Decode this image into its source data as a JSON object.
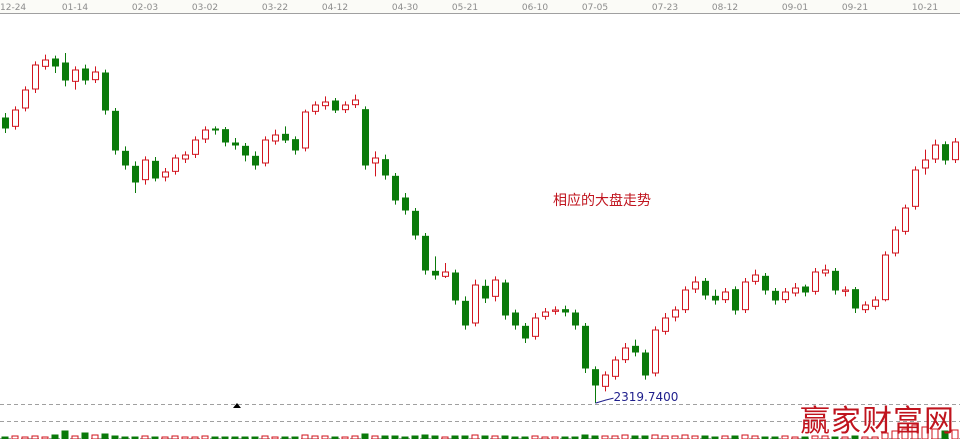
{
  "chart_data": {
    "type": "candlestick",
    "x_tick_labels": [
      {
        "label": "12-24",
        "index": 0
      },
      {
        "label": "01-14",
        "index": 7
      },
      {
        "label": "02-03",
        "index": 14
      },
      {
        "label": "03-02",
        "index": 20
      },
      {
        "label": "03-22",
        "index": 27
      },
      {
        "label": "04-12",
        "index": 33
      },
      {
        "label": "04-30",
        "index": 40
      },
      {
        "label": "05-21",
        "index": 46
      },
      {
        "label": "06-10",
        "index": 53
      },
      {
        "label": "07-05",
        "index": 59
      },
      {
        "label": "07-23",
        "index": 66
      },
      {
        "label": "08-12",
        "index": 72
      },
      {
        "label": "09-01",
        "index": 79
      },
      {
        "label": "09-21",
        "index": 85
      },
      {
        "label": "10-21",
        "index": 92
      }
    ],
    "ylim": [
      2212,
      3469
    ],
    "colors": {
      "up": "#d2141e",
      "down": "#0a7a0a",
      "grid": "#a0a0a0",
      "axis_text": "#8c8c8c",
      "low_label": "#1e1e8c"
    },
    "low_marker": {
      "index": 59,
      "value": 2319.74,
      "label": "2319.7400"
    },
    "annotation": "相应的大盘走势",
    "watermark": "赢家财富网",
    "ohlc": [
      [
        3175,
        3190,
        3130,
        3145
      ],
      [
        3150,
        3210,
        3140,
        3199
      ],
      [
        3205,
        3270,
        3195,
        3259
      ],
      [
        3262,
        3345,
        3250,
        3334
      ],
      [
        3330,
        3365,
        3320,
        3349
      ],
      [
        3352,
        3362,
        3310,
        3331
      ],
      [
        3340,
        3370,
        3270,
        3289
      ],
      [
        3285,
        3330,
        3260,
        3319
      ],
      [
        3322,
        3335,
        3275,
        3289
      ],
      [
        3290,
        3330,
        3280,
        3313
      ],
      [
        3310,
        3320,
        3185,
        3199
      ],
      [
        3195,
        3205,
        3065,
        3079
      ],
      [
        3075,
        3090,
        3020,
        3034
      ],
      [
        3030,
        3045,
        2950,
        2983
      ],
      [
        2990,
        3060,
        2975,
        3049
      ],
      [
        3045,
        3058,
        2985,
        2995
      ],
      [
        2998,
        3025,
        2985,
        3013
      ],
      [
        3015,
        3065,
        3005,
        3055
      ],
      [
        3052,
        3075,
        3040,
        3064
      ],
      [
        3066,
        3120,
        3055,
        3109
      ],
      [
        3112,
        3150,
        3100,
        3139
      ],
      [
        3142,
        3150,
        3125,
        3139
      ],
      [
        3140,
        3148,
        3090,
        3103
      ],
      [
        3100,
        3115,
        3080,
        3094
      ],
      [
        3090,
        3100,
        3045,
        3064
      ],
      [
        3060,
        3075,
        3020,
        3034
      ],
      [
        3040,
        3120,
        3030,
        3109
      ],
      [
        3106,
        3140,
        3095,
        3124
      ],
      [
        3126,
        3150,
        3100,
        3109
      ],
      [
        3110,
        3120,
        3065,
        3079
      ],
      [
        3085,
        3200,
        3075,
        3193
      ],
      [
        3195,
        3225,
        3185,
        3214
      ],
      [
        3212,
        3240,
        3200,
        3223
      ],
      [
        3226,
        3235,
        3190,
        3199
      ],
      [
        3200,
        3225,
        3190,
        3214
      ],
      [
        3215,
        3245,
        3205,
        3229
      ],
      [
        3200,
        3210,
        3020,
        3034
      ],
      [
        3040,
        3075,
        3000,
        3055
      ],
      [
        3050,
        3065,
        2990,
        3004
      ],
      [
        3000,
        3010,
        2915,
        2929
      ],
      [
        2935,
        2950,
        2885,
        2899
      ],
      [
        2895,
        2905,
        2810,
        2824
      ],
      [
        2820,
        2830,
        2705,
        2719
      ],
      [
        2715,
        2760,
        2690,
        2704
      ],
      [
        2700,
        2740,
        2695,
        2713
      ],
      [
        2710,
        2720,
        2615,
        2629
      ],
      [
        2625,
        2640,
        2540,
        2554
      ],
      [
        2560,
        2690,
        2550,
        2674
      ],
      [
        2670,
        2690,
        2620,
        2635
      ],
      [
        2640,
        2700,
        2625,
        2689
      ],
      [
        2680,
        2690,
        2570,
        2584
      ],
      [
        2590,
        2600,
        2540,
        2554
      ],
      [
        2550,
        2560,
        2500,
        2515
      ],
      [
        2520,
        2590,
        2510,
        2575
      ],
      [
        2580,
        2605,
        2570,
        2593
      ],
      [
        2595,
        2610,
        2585,
        2599
      ],
      [
        2600,
        2612,
        2580,
        2593
      ],
      [
        2590,
        2600,
        2540,
        2554
      ],
      [
        2550,
        2560,
        2410,
        2425
      ],
      [
        2420,
        2430,
        2319.74,
        2374
      ],
      [
        2370,
        2415,
        2355,
        2404
      ],
      [
        2400,
        2460,
        2390,
        2449
      ],
      [
        2450,
        2500,
        2440,
        2485
      ],
      [
        2490,
        2510,
        2460,
        2473
      ],
      [
        2470,
        2480,
        2390,
        2404
      ],
      [
        2410,
        2550,
        2400,
        2539
      ],
      [
        2535,
        2590,
        2525,
        2575
      ],
      [
        2578,
        2610,
        2565,
        2599
      ],
      [
        2600,
        2670,
        2590,
        2659
      ],
      [
        2662,
        2700,
        2650,
        2683
      ],
      [
        2685,
        2695,
        2630,
        2644
      ],
      [
        2640,
        2660,
        2615,
        2629
      ],
      [
        2630,
        2665,
        2620,
        2653
      ],
      [
        2660,
        2670,
        2585,
        2599
      ],
      [
        2600,
        2695,
        2590,
        2683
      ],
      [
        2685,
        2720,
        2675,
        2704
      ],
      [
        2700,
        2710,
        2645,
        2659
      ],
      [
        2655,
        2665,
        2615,
        2629
      ],
      [
        2630,
        2665,
        2620,
        2653
      ],
      [
        2650,
        2680,
        2640,
        2665
      ],
      [
        2668,
        2675,
        2640,
        2653
      ],
      [
        2655,
        2725,
        2645,
        2713
      ],
      [
        2710,
        2735,
        2700,
        2719
      ],
      [
        2715,
        2725,
        2645,
        2659
      ],
      [
        2655,
        2670,
        2640,
        2659
      ],
      [
        2660,
        2668,
        2590,
        2605
      ],
      [
        2600,
        2625,
        2590,
        2614
      ],
      [
        2610,
        2640,
        2600,
        2629
      ],
      [
        2630,
        2775,
        2625,
        2764
      ],
      [
        2770,
        2850,
        2760,
        2839
      ],
      [
        2835,
        2915,
        2825,
        2905
      ],
      [
        2910,
        3030,
        2900,
        3019
      ],
      [
        3025,
        3080,
        3005,
        3049
      ],
      [
        3052,
        3110,
        3040,
        3094
      ],
      [
        3095,
        3105,
        3035,
        3049
      ],
      [
        3050,
        3115,
        3040,
        3103
      ]
    ],
    "volume": [
      2,
      3,
      2,
      3,
      2,
      4,
      8,
      3,
      6,
      4,
      5,
      3,
      2,
      2,
      3,
      2,
      2,
      3,
      2,
      2,
      3,
      2,
      2,
      2,
      2,
      2,
      3,
      2,
      2,
      2,
      4,
      3,
      3,
      2,
      2,
      3,
      5,
      3,
      3,
      3,
      2,
      3,
      4,
      3,
      2,
      3,
      3,
      4,
      3,
      3,
      3,
      2,
      2,
      3,
      2,
      2,
      2,
      2,
      4,
      3,
      3,
      3,
      4,
      3,
      3,
      4,
      3,
      3,
      4,
      3,
      3,
      2,
      3,
      3,
      4,
      3,
      2,
      2,
      3,
      2,
      2,
      3,
      3,
      2,
      2,
      3,
      2,
      2,
      6,
      8,
      10,
      14,
      12,
      10,
      8,
      9
    ]
  }
}
